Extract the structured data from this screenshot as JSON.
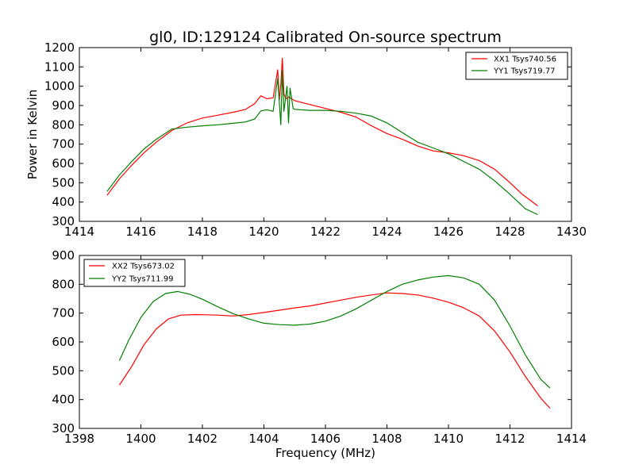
{
  "title": "gl0, ID:129124 Calibrated On-source spectrum",
  "chart_data": [
    {
      "type": "line",
      "ylabel": "Power in Kelvin",
      "xlabel": "",
      "xlim": [
        1414,
        1430
      ],
      "ylim": [
        300,
        1200
      ],
      "xticks": [
        1414,
        1416,
        1418,
        1420,
        1422,
        1424,
        1426,
        1428,
        1430
      ],
      "yticks": [
        300,
        400,
        500,
        600,
        700,
        800,
        900,
        1000,
        1100,
        1200
      ],
      "grid": false,
      "legend_position": "top-right",
      "series": [
        {
          "name": "XX1 Tsys740.56",
          "color": "#ff0000",
          "x": [
            1414.9,
            1415.3,
            1415.7,
            1416.1,
            1416.5,
            1417.0,
            1417.5,
            1418.0,
            1418.5,
            1419.0,
            1419.4,
            1419.7,
            1419.9,
            1420.1,
            1420.3,
            1420.45,
            1420.5,
            1420.55,
            1420.6,
            1420.65,
            1420.7,
            1420.75,
            1420.8,
            1420.9,
            1421.0,
            1421.5,
            1422.0,
            1422.5,
            1423.0,
            1423.5,
            1424.0,
            1424.5,
            1425.0,
            1425.5,
            1426.0,
            1426.5,
            1427.0,
            1427.5,
            1428.0,
            1428.4,
            1428.9
          ],
          "y": [
            435,
            520,
            590,
            655,
            710,
            770,
            810,
            835,
            850,
            865,
            880,
            910,
            950,
            935,
            940,
            1085,
            930,
            1010,
            1145,
            960,
            940,
            935,
            945,
            935,
            925,
            905,
            885,
            865,
            840,
            795,
            755,
            725,
            690,
            665,
            655,
            640,
            615,
            570,
            500,
            440,
            380
          ]
        },
        {
          "name": "YY1 Tsys719.77",
          "color": "#008000",
          "x": [
            1414.9,
            1415.3,
            1415.7,
            1416.1,
            1416.5,
            1417.0,
            1417.5,
            1418.0,
            1418.5,
            1419.0,
            1419.4,
            1419.7,
            1419.9,
            1420.1,
            1420.3,
            1420.45,
            1420.55,
            1420.6,
            1420.65,
            1420.75,
            1420.8,
            1420.85,
            1420.95,
            1421.0,
            1421.5,
            1422.0,
            1422.5,
            1423.0,
            1423.5,
            1424.0,
            1424.5,
            1425.0,
            1425.5,
            1426.0,
            1426.5,
            1427.0,
            1427.5,
            1428.0,
            1428.5,
            1428.9
          ],
          "y": [
            455,
            540,
            610,
            675,
            725,
            778,
            788,
            795,
            800,
            808,
            815,
            830,
            872,
            878,
            870,
            1040,
            800,
            1080,
            870,
            1000,
            810,
            990,
            885,
            880,
            875,
            875,
            870,
            860,
            845,
            810,
            760,
            710,
            680,
            650,
            610,
            570,
            510,
            440,
            365,
            335
          ]
        }
      ]
    },
    {
      "type": "line",
      "xlabel": "Frequency (MHz)",
      "ylabel": "",
      "xlim": [
        1398,
        1414
      ],
      "ylim": [
        300,
        900
      ],
      "xticks": [
        1398,
        1400,
        1402,
        1404,
        1406,
        1408,
        1410,
        1412,
        1414
      ],
      "yticks": [
        300,
        400,
        500,
        600,
        700,
        800,
        900
      ],
      "grid": false,
      "legend_position": "top-left",
      "series": [
        {
          "name": "XX2 Tsys673.02",
          "color": "#ff0000",
          "x": [
            1399.3,
            1399.7,
            1400.1,
            1400.5,
            1400.9,
            1401.3,
            1401.8,
            1402.5,
            1403.0,
            1403.5,
            1404.0,
            1404.5,
            1405.0,
            1405.5,
            1406.0,
            1406.5,
            1407.0,
            1407.5,
            1408.0,
            1408.5,
            1409.0,
            1409.5,
            1410.0,
            1410.5,
            1411.0,
            1411.5,
            1412.0,
            1412.5,
            1413.0,
            1413.3
          ],
          "y": [
            450,
            515,
            590,
            645,
            680,
            693,
            695,
            693,
            690,
            695,
            702,
            710,
            718,
            725,
            735,
            745,
            755,
            763,
            770,
            768,
            763,
            752,
            738,
            718,
            690,
            638,
            565,
            480,
            405,
            370
          ]
        },
        {
          "name": "YY2 Tsys711.99",
          "color": "#008000",
          "x": [
            1399.3,
            1399.6,
            1400.0,
            1400.4,
            1400.8,
            1401.2,
            1401.6,
            1402.0,
            1402.5,
            1403.0,
            1403.5,
            1404.0,
            1404.5,
            1405.0,
            1405.5,
            1406.0,
            1406.5,
            1407.0,
            1407.5,
            1408.0,
            1408.5,
            1409.0,
            1409.5,
            1410.0,
            1410.5,
            1411.0,
            1411.5,
            1412.0,
            1412.5,
            1413.0,
            1413.3
          ],
          "y": [
            535,
            605,
            685,
            740,
            768,
            775,
            765,
            748,
            722,
            698,
            680,
            665,
            660,
            658,
            662,
            672,
            690,
            715,
            745,
            775,
            800,
            815,
            825,
            830,
            822,
            800,
            745,
            655,
            555,
            470,
            440
          ]
        }
      ]
    }
  ]
}
